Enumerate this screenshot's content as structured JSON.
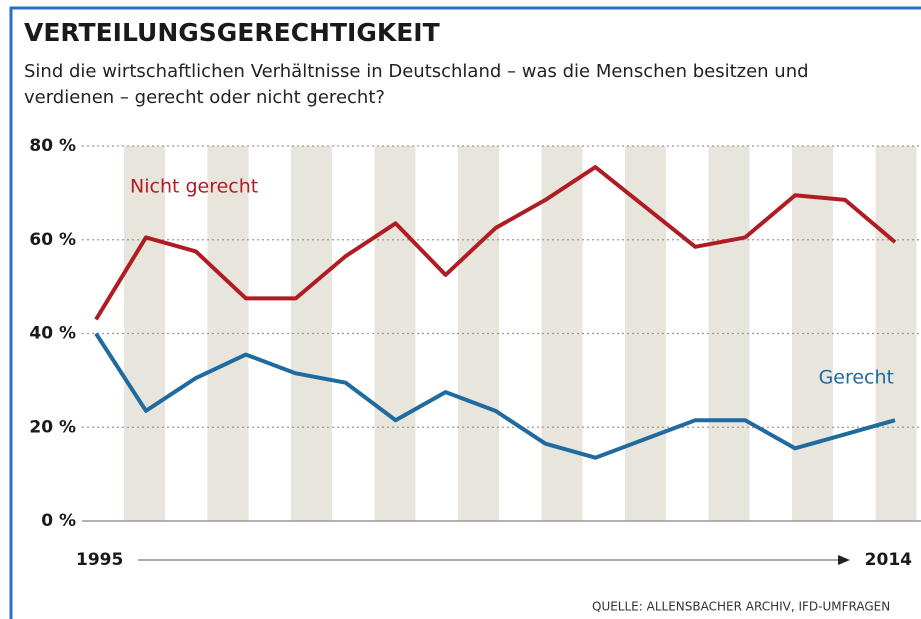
{
  "chart_data": {
    "type": "line",
    "title": "VERTEILUNGSGERECHTIGKEIT",
    "subtitle": [
      "Sind die wirtschaftlichen Verhältnisse in Deutschland – was die Menschen besitzen und",
      "verdienen – gerecht oder nicht gerecht?"
    ],
    "source": "QUELLE: ALLENSBACHER ARCHIV, IFD-UMFRAGEN",
    "categories": [
      "1995",
      null,
      null,
      null,
      null,
      null,
      null,
      null,
      null,
      null,
      null,
      null,
      null,
      null,
      null,
      null,
      "2014"
    ],
    "series": [
      {
        "name": "Nicht gerecht",
        "color": "#b01c24",
        "values": [
          43,
          60.5,
          57.5,
          47.5,
          47.5,
          56.5,
          63.5,
          52.5,
          62.5,
          68.5,
          75.5,
          67,
          58.5,
          60.5,
          69.5,
          68.5,
          59.5
        ]
      },
      {
        "name": "Gerecht",
        "color": "#1f6a9e",
        "values": [
          40,
          23.5,
          30.5,
          35.5,
          31.5,
          29.5,
          21.5,
          27.5,
          23.5,
          16.5,
          13.5,
          17.5,
          21.5,
          21.5,
          15.5,
          18.5,
          21.5
        ]
      }
    ],
    "ylim": [
      0,
      80
    ],
    "yticks": [
      {
        "value": 0,
        "label": "0 %"
      },
      {
        "value": 20,
        "label": "20 %"
      },
      {
        "value": 40,
        "label": "40 %"
      },
      {
        "value": 60,
        "label": "60 %"
      },
      {
        "value": 80,
        "label": "80 %"
      }
    ],
    "grid": true
  }
}
